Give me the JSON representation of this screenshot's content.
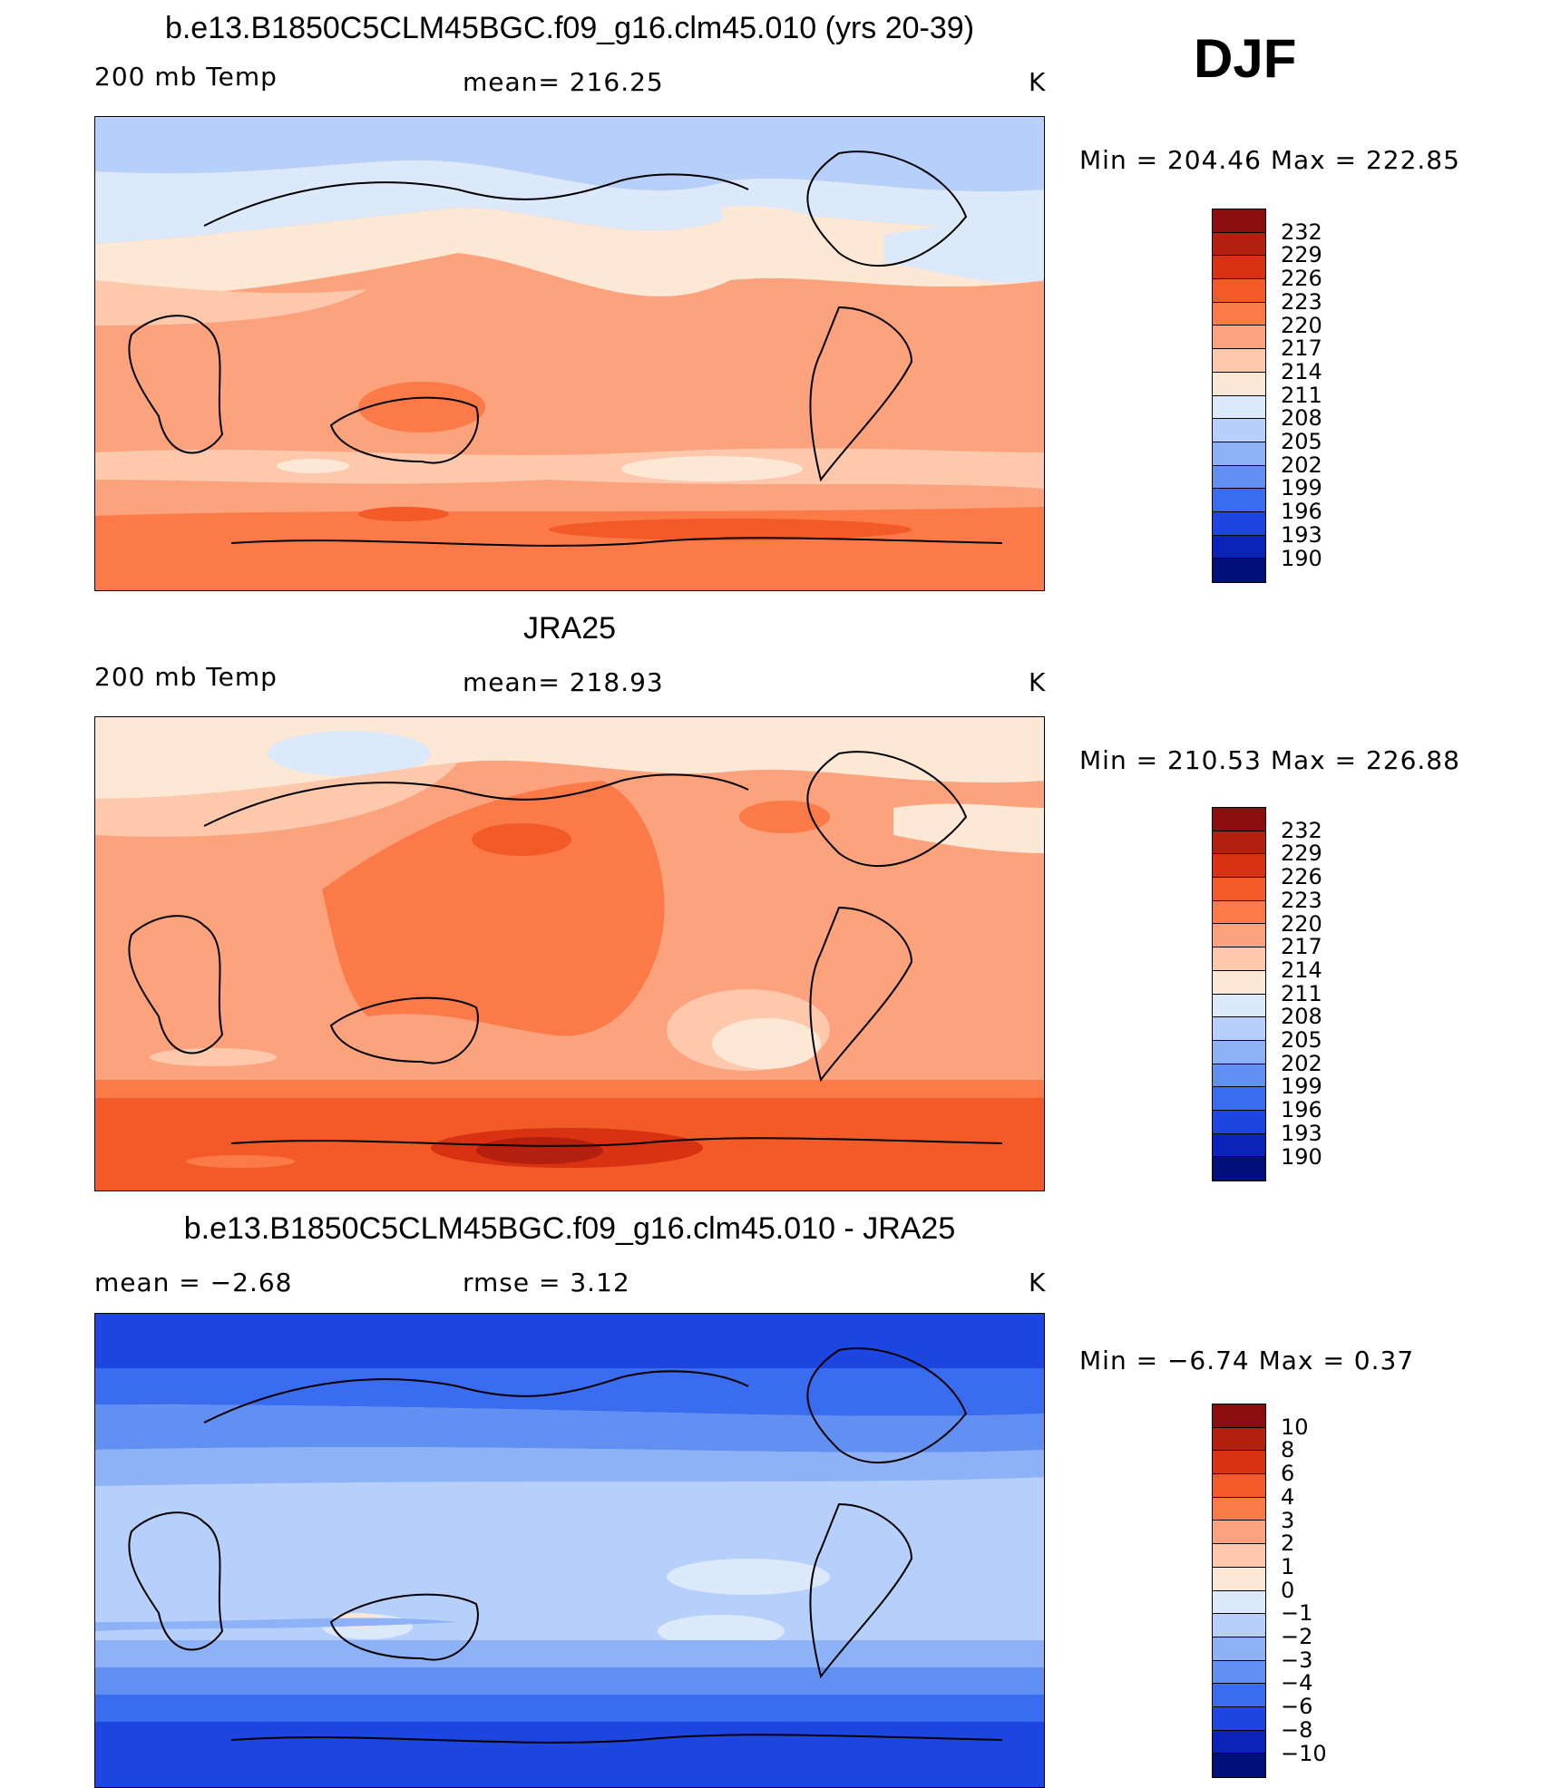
{
  "season": "DJF",
  "panels": [
    {
      "id": "model",
      "title": "b.e13.B1850C5CLM45BGC.f09_g16.clm45.010 (yrs 20-39)",
      "left_label": "200 mb Temp",
      "center_label": "mean=  216.25",
      "units": "K",
      "minmax": "Min  =  204.46  Max  =  222.85",
      "colorbar_labels": [
        "232",
        "229",
        "226",
        "223",
        "220",
        "217",
        "214",
        "211",
        "208",
        "205",
        "202",
        "199",
        "196",
        "193",
        "190"
      ],
      "colors": [
        "#8b0d0d",
        "#b5200e",
        "#d83212",
        "#f25a28",
        "#fb7a47",
        "#fca27c",
        "#fdc8ac",
        "#fde8d6",
        "#dce9fb",
        "#b7d0fb",
        "#8eb2f7",
        "#6290f2",
        "#3a6cf0",
        "#1d45e0",
        "#0b23b8",
        "#00107a"
      ]
    },
    {
      "id": "obs",
      "title": "JRA25",
      "left_label": "200 mb Temp",
      "center_label": "mean=  218.93",
      "units": "K",
      "minmax": "Min  =  210.53  Max  =  226.88",
      "colorbar_labels": [
        "232",
        "229",
        "226",
        "223",
        "220",
        "217",
        "214",
        "211",
        "208",
        "205",
        "202",
        "199",
        "196",
        "193",
        "190"
      ],
      "colors": [
        "#8b0d0d",
        "#b5200e",
        "#d83212",
        "#f25a28",
        "#fb7a47",
        "#fca27c",
        "#fdc8ac",
        "#fde8d6",
        "#dce9fb",
        "#b7d0fb",
        "#8eb2f7",
        "#6290f2",
        "#3a6cf0",
        "#1d45e0",
        "#0b23b8",
        "#00107a"
      ]
    },
    {
      "id": "diff",
      "title": "b.e13.B1850C5CLM45BGC.f09_g16.clm45.010 - JRA25",
      "left_label": "mean  =    −2.68",
      "center_label": "rmse  =     3.12",
      "units": "K",
      "minmax": "Min  =    −6.74  Max  =     0.37",
      "colorbar_labels": [
        "10",
        "8",
        "6",
        "4",
        "3",
        "2",
        "1",
        "0",
        "−1",
        "−2",
        "−3",
        "−4",
        "−6",
        "−8",
        "−10"
      ],
      "colors": [
        "#8b0d0d",
        "#b5200e",
        "#d83212",
        "#f25a28",
        "#fb7a47",
        "#fca27c",
        "#fdc8ac",
        "#fde8d6",
        "#dce9fb",
        "#b7d0fb",
        "#8eb2f7",
        "#6290f2",
        "#3a6cf0",
        "#1d45e0",
        "#0b23b8",
        "#00107a"
      ]
    }
  ]
}
